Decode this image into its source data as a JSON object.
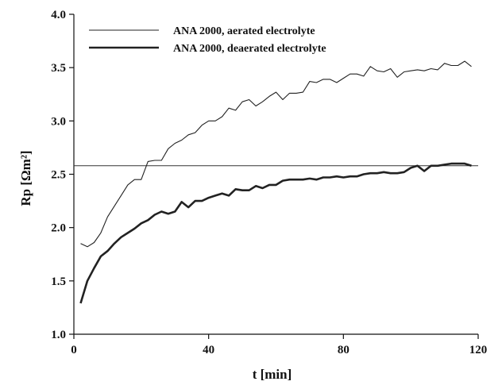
{
  "chart_data": {
    "type": "line",
    "title": "",
    "xlabel": "t  [min]",
    "ylabel": "Rp  [Ωm²]",
    "xlim": [
      0,
      120
    ],
    "ylim": [
      1.0,
      4.0
    ],
    "xticks": [
      "0",
      "40",
      "80",
      "120"
    ],
    "yticks": [
      "1.0",
      "1.5",
      "2.0",
      "2.5",
      "3.0",
      "3.5",
      "4.0"
    ],
    "grid": false,
    "legend_position": "top-left",
    "reference_line": {
      "y": 2.58
    },
    "series": [
      {
        "name": "ANA 2000, aerated electrolyte",
        "style": "thin",
        "color": "#222222",
        "x": [
          2,
          4,
          6,
          8,
          10,
          12,
          14,
          16,
          18,
          20,
          22,
          24,
          26,
          28,
          30,
          32,
          34,
          36,
          38,
          40,
          42,
          44,
          46,
          48,
          50,
          52,
          54,
          56,
          58,
          60,
          62,
          64,
          66,
          68,
          70,
          72,
          74,
          76,
          78,
          80,
          82,
          84,
          86,
          88,
          90,
          92,
          94,
          96,
          98,
          100,
          102,
          104,
          106,
          108,
          110,
          112,
          114,
          116,
          118
        ],
        "values": [
          1.85,
          1.82,
          1.86,
          1.95,
          2.1,
          2.2,
          2.3,
          2.4,
          2.45,
          2.45,
          2.62,
          2.63,
          2.63,
          2.74,
          2.79,
          2.82,
          2.87,
          2.89,
          2.96,
          3.0,
          3.0,
          3.04,
          3.12,
          3.1,
          3.18,
          3.2,
          3.14,
          3.18,
          3.23,
          3.27,
          3.2,
          3.26,
          3.26,
          3.27,
          3.37,
          3.36,
          3.39,
          3.39,
          3.36,
          3.4,
          3.44,
          3.44,
          3.42,
          3.51,
          3.47,
          3.46,
          3.49,
          3.41,
          3.46,
          3.47,
          3.48,
          3.47,
          3.49,
          3.48,
          3.54,
          3.52,
          3.52,
          3.56,
          3.51
        ]
      },
      {
        "name": "ANA 2000, deaerated electrolyte",
        "style": "thick",
        "color": "#222222",
        "x": [
          2,
          4,
          6,
          8,
          10,
          12,
          14,
          16,
          18,
          20,
          22,
          24,
          26,
          28,
          30,
          32,
          34,
          36,
          38,
          40,
          42,
          44,
          46,
          48,
          50,
          52,
          54,
          56,
          58,
          60,
          62,
          64,
          66,
          68,
          70,
          72,
          74,
          76,
          78,
          80,
          82,
          84,
          86,
          88,
          90,
          92,
          94,
          96,
          98,
          100,
          102,
          104,
          106,
          108,
          110,
          112,
          114,
          116,
          118
        ],
        "values": [
          1.29,
          1.5,
          1.62,
          1.73,
          1.78,
          1.85,
          1.91,
          1.95,
          1.99,
          2.04,
          2.07,
          2.12,
          2.15,
          2.13,
          2.15,
          2.24,
          2.19,
          2.25,
          2.25,
          2.28,
          2.3,
          2.32,
          2.3,
          2.36,
          2.35,
          2.35,
          2.39,
          2.37,
          2.4,
          2.4,
          2.44,
          2.45,
          2.45,
          2.45,
          2.46,
          2.45,
          2.47,
          2.47,
          2.48,
          2.47,
          2.48,
          2.48,
          2.5,
          2.51,
          2.51,
          2.52,
          2.51,
          2.51,
          2.52,
          2.56,
          2.58,
          2.53,
          2.58,
          2.58,
          2.59,
          2.6,
          2.6,
          2.6,
          2.58
        ]
      }
    ]
  }
}
